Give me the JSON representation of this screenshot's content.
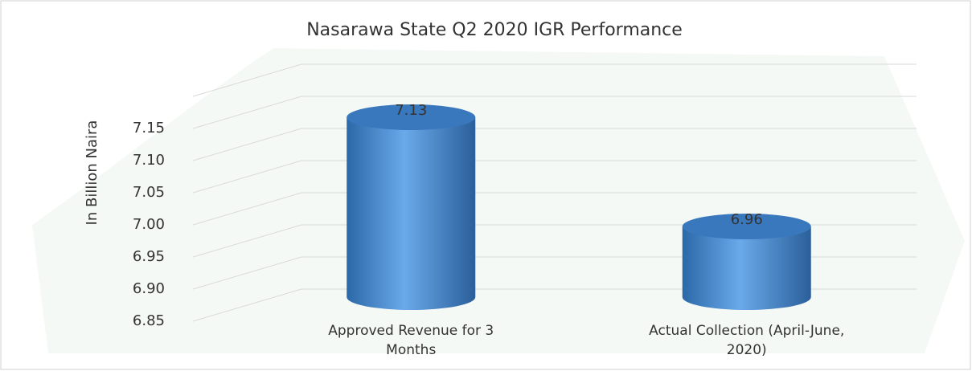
{
  "chart_data": {
    "type": "bar",
    "title": "Nasarawa State Q2 2020 IGR Performance",
    "y_label": "In Billion Naira",
    "categories": [
      "Approved Revenue for 3 Months",
      "Actual Collection (April-June, 2020)"
    ],
    "values": [
      7.13,
      6.96
    ],
    "color": "#4a8fd6",
    "ylim": [
      6.85,
      7.2
    ],
    "yticks": [
      6.85,
      {
        "value": 6.9,
        "label": "6.90"
      },
      6.95,
      {
        "value": 7,
        "label": "7.00"
      },
      7.05,
      {
        "value": 7.1,
        "label": "7.10"
      },
      7.15
    ],
    "grid": true
  }
}
